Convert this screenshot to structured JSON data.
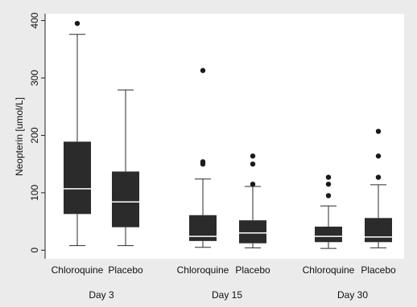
{
  "chart_data": {
    "type": "box",
    "ylabel": "Neopterin [umol/L]",
    "ylim": [
      -15,
      412
    ],
    "yticks": [
      0,
      100,
      200,
      300,
      400
    ],
    "grid": false,
    "legend": "none",
    "colors": {
      "box": "#2b2b2b",
      "median": "#ffffff",
      "plot_bg": "#ffffff",
      "outer_bg": "#ebebeb"
    },
    "groups": [
      {
        "label": "Day 3",
        "boxes": [
          {
            "label": "Chloroquine",
            "whisker_low": 8,
            "q1": 63,
            "median": 107,
            "q3": 189,
            "whisker_high": 376,
            "outliers": [
              395
            ]
          },
          {
            "label": "Placebo",
            "whisker_low": 8,
            "q1": 40,
            "median": 84,
            "q3": 137,
            "whisker_high": 279,
            "outliers": []
          }
        ]
      },
      {
        "label": "Day 15",
        "boxes": [
          {
            "label": "Chloroquine",
            "whisker_low": 5,
            "q1": 16,
            "median": 24,
            "q3": 61,
            "whisker_high": 124,
            "outliers": [
              150,
              154,
              313
            ]
          },
          {
            "label": "Placebo",
            "whisker_low": 4,
            "q1": 12,
            "median": 30,
            "q3": 52,
            "whisker_high": 111,
            "outliers": [
              115,
              150,
              164
            ]
          }
        ]
      },
      {
        "label": "Day 30",
        "boxes": [
          {
            "label": "Chloroquine",
            "whisker_low": 3,
            "q1": 14,
            "median": 24,
            "q3": 41,
            "whisker_high": 77,
            "outliers": [
              95,
              115,
              127
            ]
          },
          {
            "label": "Placebo",
            "whisker_low": 4,
            "q1": 14,
            "median": 23,
            "q3": 56,
            "whisker_high": 114,
            "outliers": [
              127,
              164,
              207
            ]
          }
        ]
      }
    ]
  }
}
